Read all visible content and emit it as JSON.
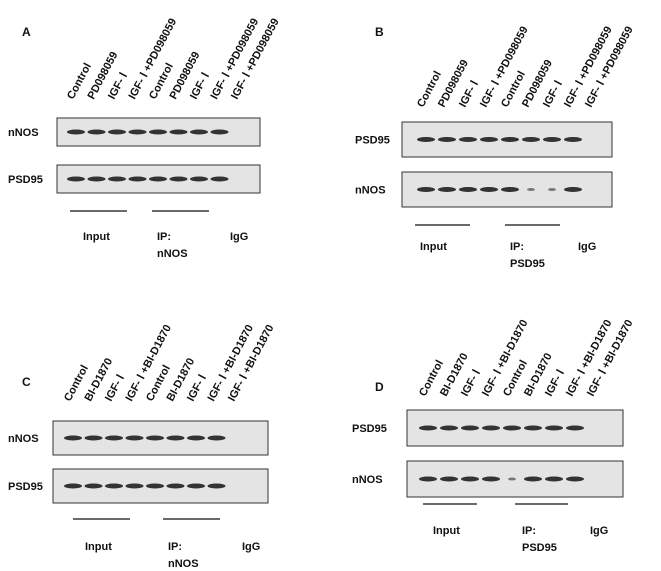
{
  "panels": [
    {
      "letter": "A",
      "lanes": [
        "Control",
        "PD098059",
        "IGF- Ⅰ",
        "IGF- Ⅰ +PD098059",
        "Control",
        "PD098059",
        "IGF- Ⅰ",
        "IGF- Ⅰ +PD098059",
        "IGF- Ⅰ +PD098059"
      ],
      "blots": [
        "nNOS",
        "PSD95"
      ],
      "input": "Input",
      "ip": [
        "IP:",
        "nNOS"
      ],
      "igg": "IgG"
    },
    {
      "letter": "B",
      "lanes": [
        "Control",
        "PD098059",
        "IGF- Ⅰ",
        "IGF- Ⅰ +PD098059",
        "Control",
        "PD098059",
        "IGF- Ⅰ",
        "IGF- Ⅰ +PD098059",
        "IGF- Ⅰ +PD098059"
      ],
      "blots": [
        "PSD95",
        "nNOS"
      ],
      "input": "Input",
      "ip": [
        "IP:",
        "PSD95"
      ],
      "igg": "IgG"
    },
    {
      "letter": "C",
      "lanes": [
        "Control",
        "BI-D1870",
        "IGF- Ⅰ",
        "IGF- Ⅰ +BI-D1870",
        "Control",
        "BI-D1870",
        "IGF- Ⅰ",
        "IGF- Ⅰ +BI-D1870",
        "IGF- Ⅰ +BI-D1870"
      ],
      "blots": [
        "nNOS",
        "PSD95"
      ],
      "input": "Input",
      "ip": [
        "IP:",
        "nNOS"
      ],
      "igg": "IgG"
    },
    {
      "letter": "D",
      "lanes": [
        "Control",
        "BI-D1870",
        "IGF- Ⅰ",
        "IGF- Ⅰ +BI-D1870",
        "Control",
        "BI-D1870",
        "IGF- Ⅰ",
        "IGF- Ⅰ +BI-D1870",
        "IGF- Ⅰ +BI-D1870"
      ],
      "blots": [
        "PSD95",
        "nNOS"
      ],
      "input": "Input",
      "ip": [
        "IP:",
        "PSD95"
      ],
      "igg": "IgG"
    }
  ]
}
